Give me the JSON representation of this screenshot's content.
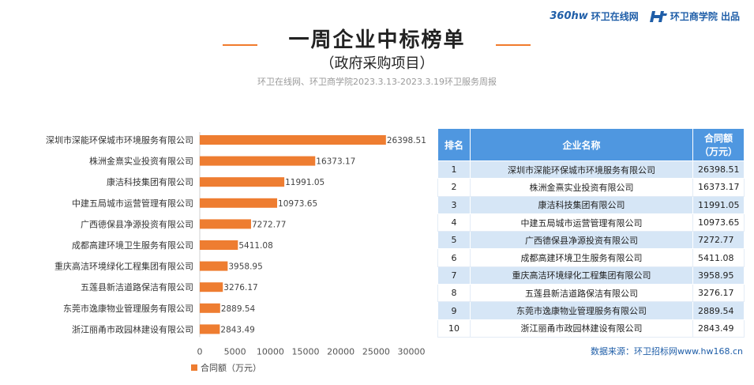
{
  "header": {
    "logo1_mark": "360hw",
    "logo1_text": "环卫在线网",
    "logo2_text": "环卫商学院 出品",
    "title": "一周企业中标榜单",
    "subtitle": "（政府采购项目）",
    "source_line": "环卫在线网、环卫商学院2023.3.13-2023.3.19环卫服务周报"
  },
  "colors": {
    "bar": "#ee7d31",
    "table_header": "#4f97e0",
    "table_odd_row": "#d6e6f6",
    "accent_dash": "#f07b2c"
  },
  "chart_data": {
    "type": "bar",
    "orientation": "horizontal",
    "categories": [
      "深圳市深能环保城市环境服务有限公司",
      "株洲金熹实业投资有限公司",
      "康洁科技集团有限公司",
      "中建五局城市运营管理有限公司",
      "广西德保县净源投资有限公司",
      "成都高建环境卫生服务有限公司",
      "重庆高洁环境绿化工程集团有限公司",
      "五莲县新洁道路保洁有限公司",
      "东莞市逸康物业管理服务有限公司",
      "浙江丽甬市政园林建设有限公司"
    ],
    "series": [
      {
        "name": "合同额（万元）",
        "values": [
          26398.51,
          16373.17,
          11991.05,
          10973.65,
          7272.77,
          5411.08,
          3958.95,
          3276.17,
          2889.54,
          2843.49
        ]
      }
    ],
    "value_labels": [
      "26398.51",
      "16373.17",
      "11991.05",
      "10973.65",
      "7272.77",
      "5411.08",
      "3958.95",
      "3276.17",
      "2889.54",
      "2843.49"
    ],
    "xlim": [
      0,
      30000
    ],
    "xticks": [
      0,
      5000,
      10000,
      15000,
      20000,
      25000,
      30000
    ],
    "legend": "bottom-left",
    "grid": false
  },
  "table": {
    "headers": [
      "排名",
      "企业名称",
      "合同额",
      "（万元）"
    ],
    "rows": [
      {
        "rank": "1",
        "name": "深圳市深能环保城市环境服务有限公司",
        "value": "26398.51"
      },
      {
        "rank": "2",
        "name": "株洲金熹实业投资有限公司",
        "value": "16373.17"
      },
      {
        "rank": "3",
        "name": "康洁科技集团有限公司",
        "value": "11991.05"
      },
      {
        "rank": "4",
        "name": "中建五局城市运营管理有限公司",
        "value": "10973.65"
      },
      {
        "rank": "5",
        "name": "广西德保县净源投资有限公司",
        "value": "7272.77"
      },
      {
        "rank": "6",
        "name": "成都高建环境卫生服务有限公司",
        "value": "5411.08"
      },
      {
        "rank": "7",
        "name": "重庆高洁环境绿化工程集团有限公司",
        "value": "3958.95"
      },
      {
        "rank": "8",
        "name": "五莲县新洁道路保洁有限公司",
        "value": "3276.17"
      },
      {
        "rank": "9",
        "name": "东莞市逸康物业管理服务有限公司",
        "value": "2889.54"
      },
      {
        "rank": "10",
        "name": "浙江丽甬市政园林建设有限公司",
        "value": "2843.49"
      }
    ]
  },
  "footer": {
    "source": "数据来源：环卫招标网www.hw168.cn"
  }
}
